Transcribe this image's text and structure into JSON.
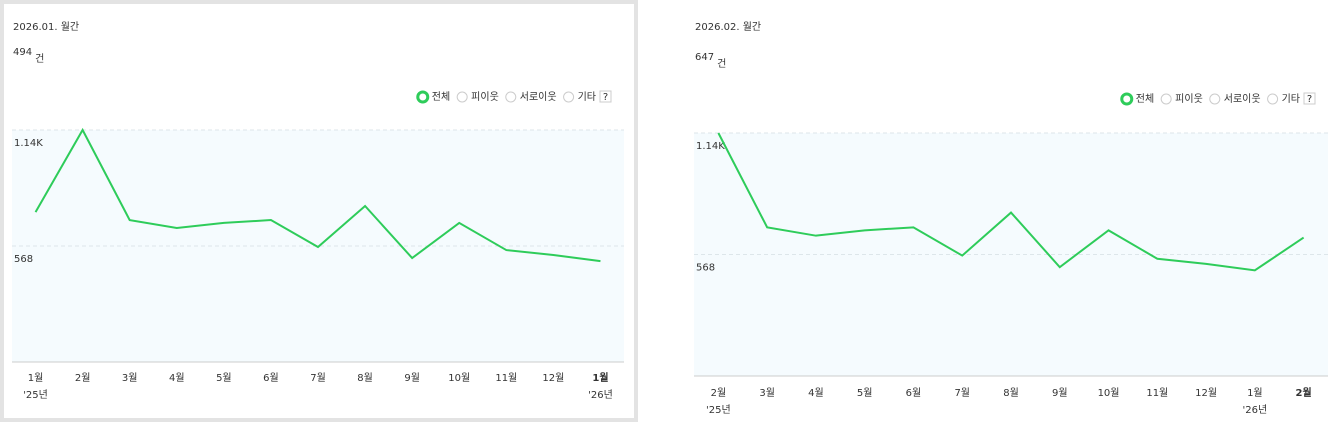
{
  "chart_data": [
    {
      "type": "line",
      "title": "2026.01. 월간",
      "total": "494",
      "unit": "건",
      "legend_options": [
        "전체",
        "피이웃",
        "서로이웃",
        "기타"
      ],
      "help": "?",
      "categories": [
        "1월",
        "2월",
        "3월",
        "4월",
        "5월",
        "6월",
        "7월",
        "8월",
        "9월",
        "10월",
        "11월",
        "12월",
        "1월"
      ],
      "x_sublabels": [
        "'25년",
        null,
        null,
        null,
        null,
        null,
        null,
        null,
        null,
        null,
        null,
        null,
        "'26년"
      ],
      "series": [
        {
          "name": "전체",
          "color": "#2ecc5a",
          "values": [
            734,
            1136,
            695,
            656,
            681,
            695,
            563,
            764,
            509,
            681,
            548,
            524,
            494
          ]
        }
      ],
      "ylim": [
        0,
        1136
      ],
      "yticks": [
        568,
        {
          "value": 1136,
          "label": "1.14K"
        }
      ],
      "grid": true
    },
    {
      "type": "line",
      "title": "2026.02. 월간",
      "total": "647",
      "unit": "건",
      "legend_options": [
        "전체",
        "피이웃",
        "서로이웃",
        "기타"
      ],
      "help": "?",
      "categories": [
        "2월",
        "3월",
        "4월",
        "5월",
        "6월",
        "7월",
        "8월",
        "9월",
        "10월",
        "11월",
        "12월",
        "1월",
        "2월"
      ],
      "x_sublabels": [
        "'25년",
        null,
        null,
        null,
        null,
        null,
        null,
        null,
        null,
        null,
        null,
        "'26년",
        null
      ],
      "series": [
        {
          "name": "전체",
          "color": "#2ecc5a",
          "values": [
            1136,
            695,
            656,
            681,
            695,
            563,
            764,
            509,
            681,
            548,
            524,
            494,
            647
          ]
        }
      ],
      "ylim": [
        0,
        1136
      ],
      "yticks": [
        568,
        {
          "value": 1136,
          "label": "1.14K"
        }
      ],
      "grid": true
    }
  ]
}
